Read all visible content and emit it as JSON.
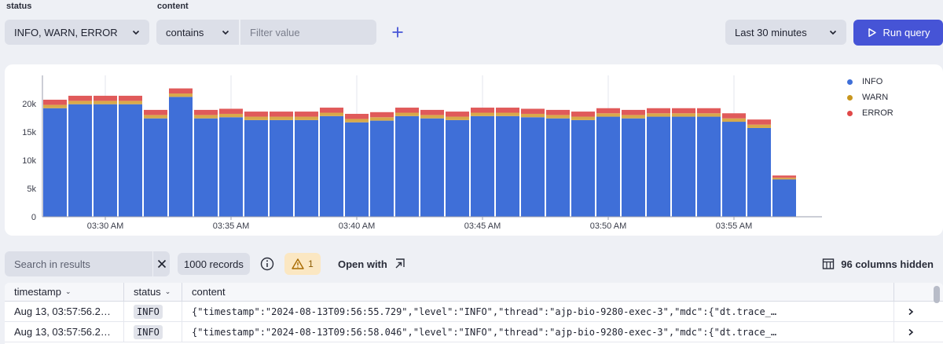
{
  "filters": {
    "status_label": "status",
    "status_value": "INFO, WARN, ERROR",
    "content_label": "content",
    "operator_value": "contains",
    "filter_placeholder": "Filter value"
  },
  "timeframe": "Last 30 minutes",
  "run_query_label": "Run query",
  "chart_data": {
    "type": "bar",
    "stacked": true,
    "categories": [
      "03:28",
      "03:29",
      "03:30",
      "03:31",
      "03:32",
      "03:33",
      "03:34",
      "03:35",
      "03:36",
      "03:37",
      "03:38",
      "03:39",
      "03:40",
      "03:41",
      "03:42",
      "03:43",
      "03:44",
      "03:45",
      "03:46",
      "03:47",
      "03:48",
      "03:49",
      "03:50",
      "03:51",
      "03:52",
      "03:53",
      "03:54",
      "03:55",
      "03:56",
      "03:57",
      "03:58"
    ],
    "series": [
      {
        "name": "INFO",
        "color": "#3f6fd8",
        "values": [
          19200,
          19900,
          19900,
          19900,
          17400,
          21200,
          17400,
          17600,
          17100,
          17100,
          17100,
          17800,
          16700,
          17000,
          17800,
          17400,
          17100,
          17800,
          17800,
          17600,
          17400,
          17100,
          17700,
          17400,
          17700,
          17700,
          17700,
          16800,
          15700,
          6600,
          0
        ]
      },
      {
        "name": "WARN",
        "color": "#d8a94a",
        "values": [
          600,
          600,
          600,
          600,
          600,
          600,
          600,
          600,
          600,
          600,
          600,
          600,
          600,
          600,
          600,
          600,
          600,
          600,
          600,
          600,
          600,
          600,
          600,
          600,
          600,
          600,
          600,
          600,
          600,
          300,
          0
        ]
      },
      {
        "name": "ERROR",
        "color": "#e05a5a",
        "values": [
          900,
          900,
          900,
          900,
          900,
          900,
          900,
          900,
          900,
          900,
          900,
          900,
          900,
          900,
          900,
          900,
          900,
          900,
          900,
          900,
          900,
          900,
          900,
          900,
          900,
          900,
          900,
          900,
          900,
          400,
          0
        ]
      }
    ],
    "yticks": [
      "0",
      "5k",
      "10k",
      "15k",
      "20k"
    ],
    "ytick_values": [
      0,
      5000,
      10000,
      15000,
      20000
    ],
    "ylim": [
      0,
      25000
    ],
    "xticks": [
      "03:30 AM",
      "03:35 AM",
      "03:40 AM",
      "03:45 AM",
      "03:50 AM",
      "03:55 AM"
    ],
    "xtick_indices": [
      2,
      7,
      12,
      17,
      22,
      27
    ],
    "grid": true,
    "legend": "top-right"
  },
  "results": {
    "search_placeholder": "Search in results",
    "records": "1000 records",
    "warning_count": "1",
    "open_with": "Open with",
    "columns_hidden": "96 columns hidden"
  },
  "table": {
    "headers": [
      "timestamp",
      "status",
      "content"
    ],
    "rows": [
      {
        "timestamp": "Aug 13, 03:57:56.2…",
        "status": "INFO",
        "content": "{\"timestamp\":\"2024-08-13T09:56:55.729\",\"level\":\"INFO\",\"thread\":\"ajp-bio-9280-exec-3\",\"mdc\":{\"dt.trace_…"
      },
      {
        "timestamp": "Aug 13, 03:57:56.2…",
        "status": "INFO",
        "content": "{\"timestamp\":\"2024-08-13T09:56:58.046\",\"level\":\"INFO\",\"thread\":\"ajp-bio-9280-exec-3\",\"mdc\":{\"dt.trace_…"
      }
    ]
  }
}
